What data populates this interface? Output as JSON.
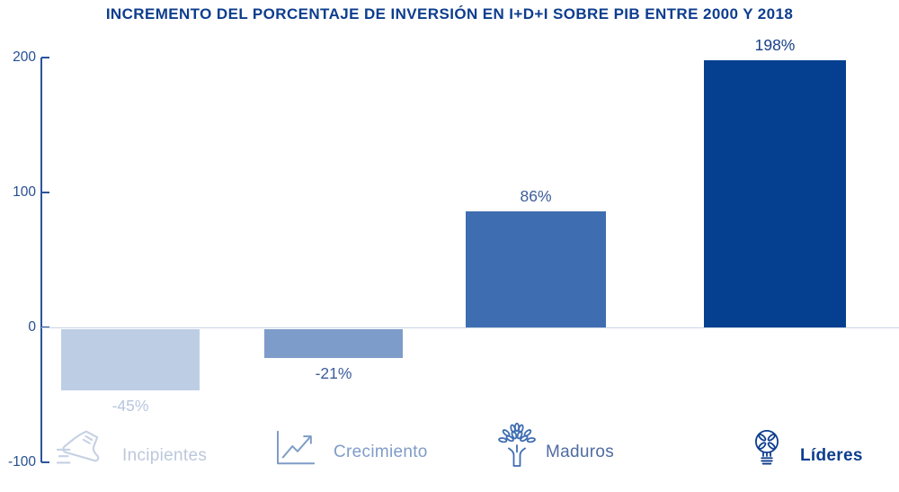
{
  "chart_title": "INCREMENTO DEL PORCENTAJE DE INVERSIÓN EN I+D+I SOBRE PIB ENTRE 2000 Y 2018",
  "colors": {
    "title": "#0d3d8e",
    "axis": "#2b549c",
    "tick_label": "#264f92",
    "zero_line": "#c9d4e4",
    "background": "#ffffff"
  },
  "axis": {
    "ticks": [
      {
        "label": "200",
        "value": 200
      },
      {
        "label": "100",
        "value": 100
      },
      {
        "label": "0",
        "value": 0
      },
      {
        "label": "-100",
        "value": -100
      }
    ]
  },
  "chart_data": {
    "type": "bar",
    "title": "INCREMENTO DEL PORCENTAJE DE INVERSIÓN EN I+D+I SOBRE PIB ENTRE 2000 Y 2018",
    "categories": [
      "Incipientes",
      "Crecimiento",
      "Maduros",
      "Líderes"
    ],
    "values": [
      -45,
      -21,
      86,
      198
    ],
    "data_labels": [
      "-45%",
      "-21%",
      "86%",
      "198%"
    ],
    "ylim": [
      -100,
      200
    ],
    "yticks": [
      200,
      100,
      0,
      -100
    ],
    "xlabel": "",
    "ylabel": "",
    "grid": false,
    "legend": "none",
    "bar_colors": [
      "#bdcee4",
      "#7e9cca",
      "#3e6db1",
      "#04408f"
    ],
    "category_icons": [
      "running-shoe",
      "growth-chart",
      "tree",
      "lightbulb"
    ]
  },
  "bars": [
    {
      "category": "Incipientes",
      "value": -45,
      "data_label": "-45%",
      "bar_color": "#bdcee4",
      "label_color": "#b8c6dc",
      "category_color": "#bcc8dc",
      "category_bold": false,
      "icon": "running-shoe-icon",
      "icon_color": "#c6d1e3"
    },
    {
      "category": "Crecimiento",
      "value": -21,
      "data_label": "-21%",
      "bar_color": "#7e9cca",
      "label_color": "#3c5d9b",
      "category_color": "#7f9cc7",
      "category_bold": false,
      "icon": "growth-chart-icon",
      "icon_color": "#7f9cc7"
    },
    {
      "category": "Maduros",
      "value": 86,
      "data_label": "86%",
      "bar_color": "#3e6db1",
      "label_color": "#3c5d9b",
      "category_color": "#4f6ca0",
      "category_bold": false,
      "icon": "tree-icon",
      "icon_color": "#3e6db1"
    },
    {
      "category": "Líderes",
      "value": 198,
      "data_label": "198%",
      "bar_color": "#04408f",
      "label_color": "#163f86",
      "category_color": "#0d3d8e",
      "category_bold": true,
      "icon": "lightbulb-icon",
      "icon_color": "#0d3d8e"
    }
  ]
}
